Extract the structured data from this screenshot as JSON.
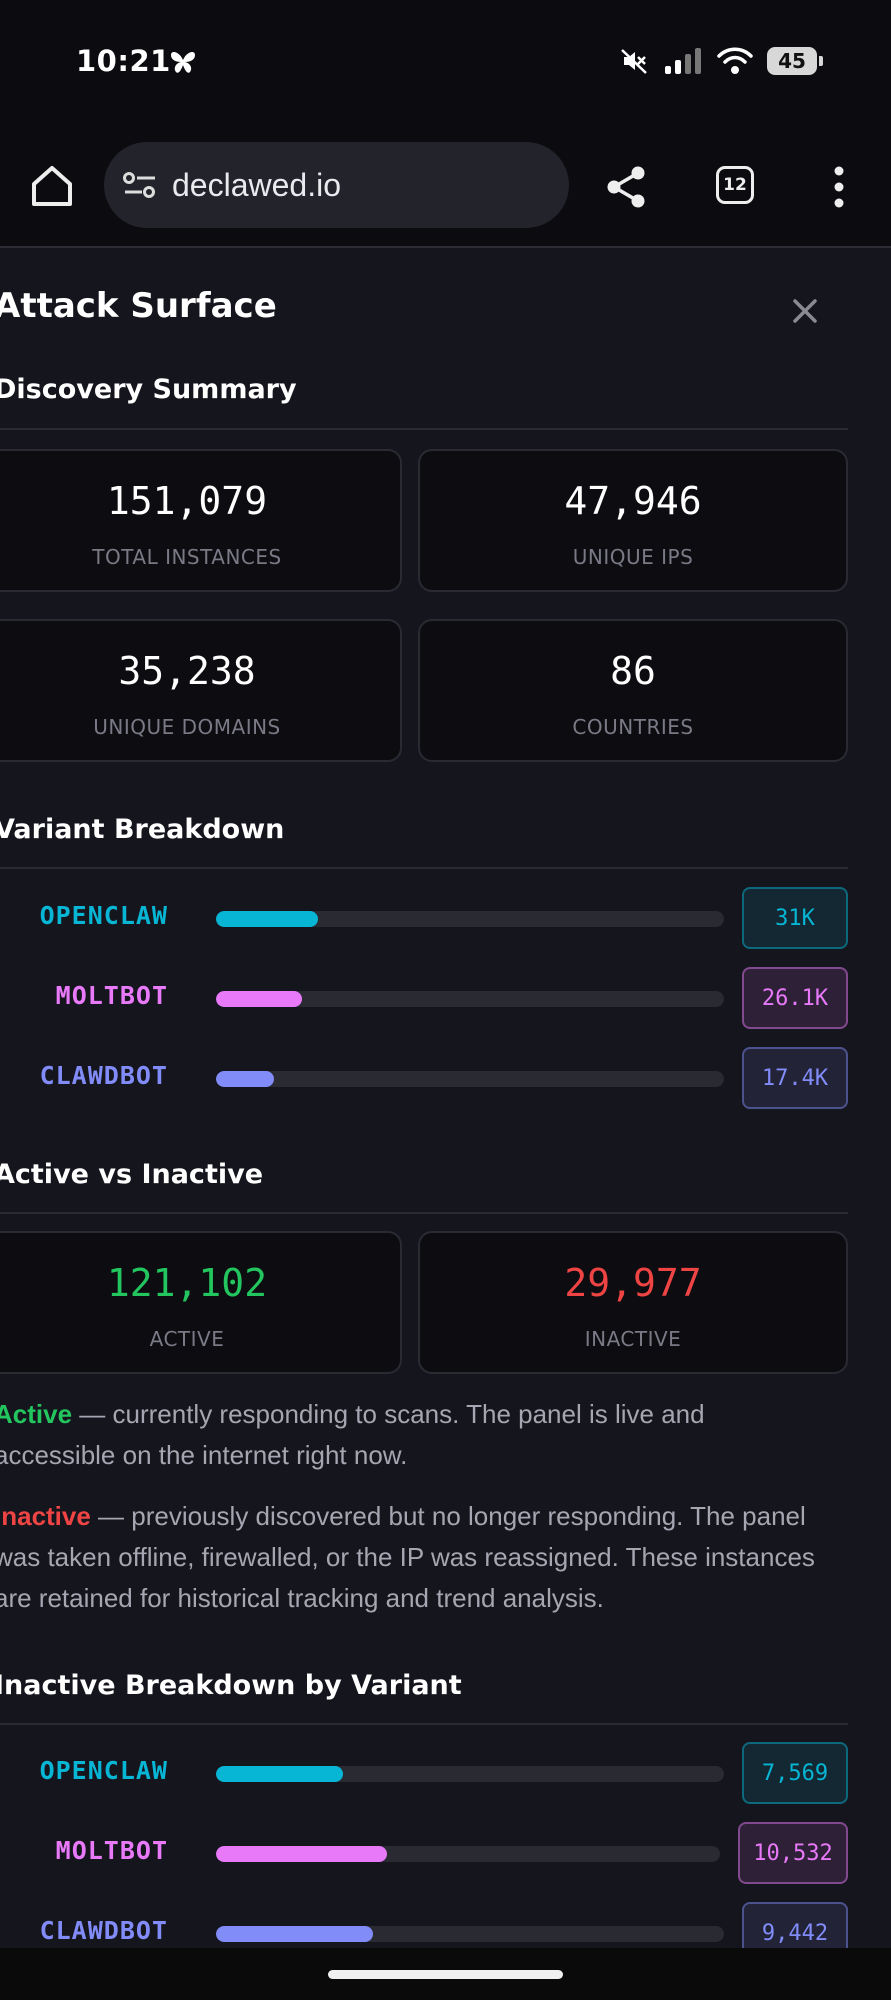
{
  "status_bar": {
    "time": "10:21",
    "battery": "45"
  },
  "browser": {
    "url": "declawed.io",
    "tab_count": "12"
  },
  "panel": {
    "title": "Attack Surface",
    "discovery": {
      "title": "Discovery Summary",
      "stats": [
        {
          "value": "151,079",
          "label": "TOTAL INSTANCES"
        },
        {
          "value": "47,946",
          "label": "UNIQUE IPS"
        },
        {
          "value": "35,238",
          "label": "UNIQUE DOMAINS"
        },
        {
          "value": "86",
          "label": "COUNTRIES"
        }
      ]
    },
    "variants": {
      "title": "Variant Breakdown",
      "items": [
        {
          "name": "OPENCLAW",
          "value": "31K",
          "fraction": 0.2,
          "color": "#06b6d4"
        },
        {
          "name": "MOLTBOT",
          "value": "26.1K",
          "fraction": 0.17,
          "color": "#e879f9"
        },
        {
          "name": "CLAWDBOT",
          "value": "17.4K",
          "fraction": 0.115,
          "color": "#818cf8"
        }
      ]
    },
    "activity": {
      "title": "Active vs Inactive",
      "active_value": "121,102",
      "active_label": "ACTIVE",
      "inactive_value": "29,977",
      "inactive_label": "INACTIVE",
      "active_keyword": "Active",
      "active_desc": " — currently responding to scans. The panel is live and accessible on the internet right now.",
      "inactive_keyword": "Inactive",
      "inactive_desc": " — previously discovered but no longer responding. The panel was taken offline, firewalled, or the IP was reassigned. These instances are retained for historical tracking and trend analysis."
    },
    "inactive_variants": {
      "title": "Inactive Breakdown by Variant",
      "items": [
        {
          "name": "OPENCLAW",
          "value": "7,569",
          "fraction": 0.25,
          "color": "#06b6d4"
        },
        {
          "name": "MOLTBOT",
          "value": "10,532",
          "fraction": 0.34,
          "color": "#e879f9"
        },
        {
          "name": "CLAWDBOT",
          "value": "9,442",
          "fraction": 0.31,
          "color": "#818cf8"
        }
      ]
    }
  },
  "colors": {
    "active": "#22c55e",
    "inactive": "#ef4444",
    "background": "#15151d"
  },
  "icons": [
    "butterfly-icon",
    "mute-icon",
    "signal-icon",
    "wifi-icon",
    "battery-icon",
    "home-icon",
    "tune-icon",
    "share-icon",
    "tabs-icon",
    "more-vert-icon",
    "close-icon"
  ]
}
